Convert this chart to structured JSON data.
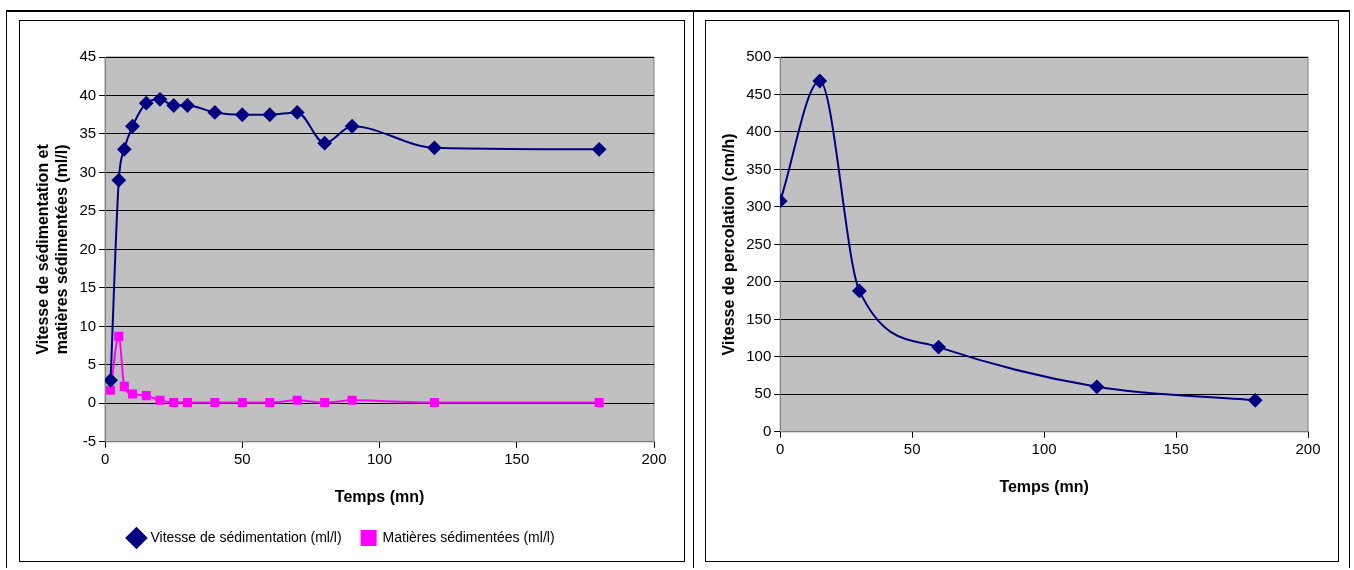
{
  "chart_data": [
    {
      "type": "line",
      "xlabel": "Temps (mn)",
      "ylabel": "Vitesse de sédimentation et matières sédimentées (ml/l)",
      "xlim": [
        0,
        200
      ],
      "xticks": [
        0,
        50,
        100,
        150,
        200
      ],
      "ylim": [
        -5,
        45
      ],
      "yticks": [
        -5,
        0,
        5,
        10,
        15,
        20,
        25,
        30,
        35,
        40,
        45
      ],
      "grid": "y",
      "legend": "bottom",
      "x": [
        2,
        5,
        7,
        10,
        15,
        20,
        25,
        30,
        40,
        50,
        60,
        70,
        80,
        90,
        120,
        180
      ],
      "series": [
        {
          "name": "Vitesse de sédimentation (ml/l)",
          "color": "#000080",
          "marker": "diamond",
          "values": [
            3,
            29,
            33,
            36,
            39,
            39.5,
            38.7,
            38.7,
            37.8,
            37.5,
            37.5,
            37.8,
            33.8,
            36,
            33.2,
            33
          ]
        },
        {
          "name": "Matières sédimentées (ml/l)",
          "color": "#ff00ff",
          "marker": "square",
          "values": [
            1.7,
            8.7,
            2.2,
            1.2,
            1,
            0.4,
            0.1,
            0.1,
            0.1,
            0.1,
            0.1,
            0.4,
            0.1,
            0.4,
            0.1,
            0.1
          ]
        }
      ]
    },
    {
      "type": "line",
      "xlabel": "Temps (mn)",
      "ylabel": "Vitesse de percolation (cm/h)",
      "xlim": [
        0,
        200
      ],
      "xticks": [
        0,
        50,
        100,
        150,
        200
      ],
      "ylim": [
        0,
        500
      ],
      "yticks": [
        0,
        50,
        100,
        150,
        200,
        250,
        300,
        350,
        400,
        450,
        500
      ],
      "grid": "y",
      "legend": false,
      "marker": "diamond",
      "x": [
        0,
        15,
        30,
        60,
        120,
        180
      ],
      "series": [
        {
          "color": "#000080",
          "values": [
            308,
            468,
            188,
            113,
            60,
            42
          ]
        }
      ]
    }
  ]
}
